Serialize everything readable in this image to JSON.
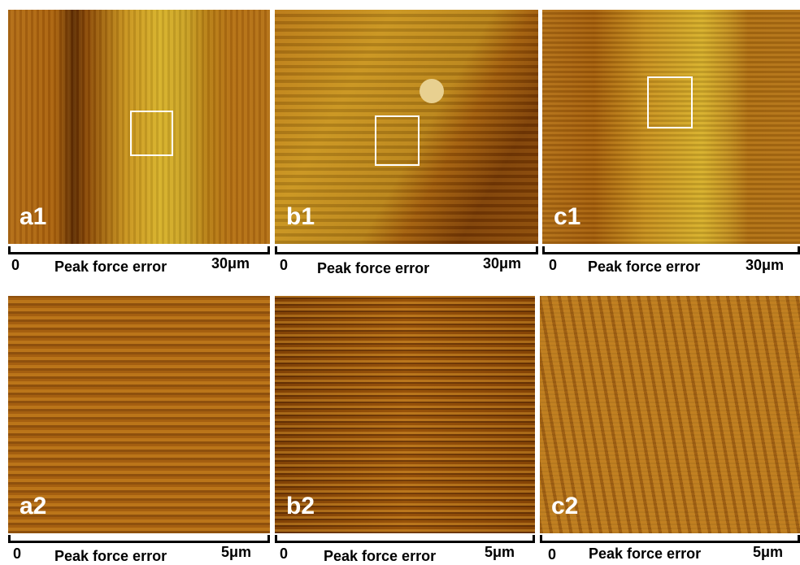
{
  "panels": [
    {
      "label": "a1",
      "scale_start": "0",
      "caption": "Peak force error",
      "scale_end": "30μm"
    },
    {
      "label": "b1",
      "scale_start": "0",
      "caption": "Peak force error",
      "scale_end": "30μm"
    },
    {
      "label": "c1",
      "scale_start": "0",
      "caption": "Peak force error",
      "scale_end": "30μm"
    },
    {
      "label": "a2",
      "scale_start": "0",
      "caption": "Peak force error",
      "scale_end": "5μm"
    },
    {
      "label": "b2",
      "scale_start": "0",
      "caption": "Peak force error",
      "scale_end": "5μm"
    },
    {
      "label": "c2",
      "scale_start": "0",
      "caption": "Peak force error",
      "scale_end": "5μm"
    }
  ]
}
